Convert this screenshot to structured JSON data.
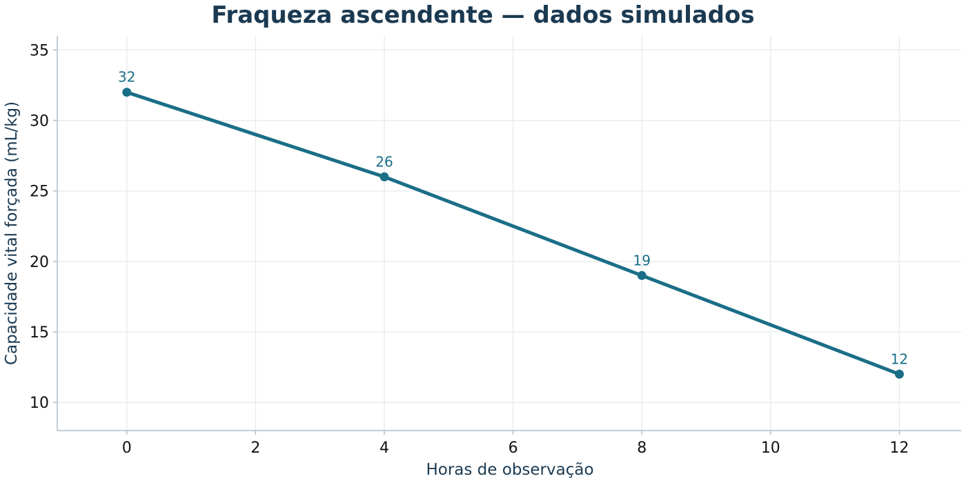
{
  "chart_data": {
    "type": "line",
    "title": "Fraqueza ascendente — dados simulados",
    "xlabel": "Horas de observação",
    "ylabel": "Capacidade vital forçada (mL/kg)",
    "x": [
      0,
      4,
      8,
      12
    ],
    "series": [
      {
        "values": [
          32,
          26,
          19,
          12
        ],
        "data_labels": [
          "32",
          "26",
          "19",
          "12"
        ],
        "color": "#1a6e87"
      }
    ],
    "xlim": [
      -1.08,
      12.96
    ],
    "ylim": [
      8,
      36
    ],
    "xticks": [
      0,
      2,
      4,
      6,
      8,
      10,
      12
    ],
    "xtick_labels": [
      "0",
      "2",
      "4",
      "6",
      "8",
      "10",
      "12"
    ],
    "yticks": [
      10,
      15,
      20,
      25,
      30,
      35
    ],
    "ytick_labels": [
      "10",
      "15",
      "20",
      "25",
      "30",
      "35"
    ],
    "grid": true,
    "legend": "none",
    "colors": {
      "line": "#1a6e87",
      "title": "#1b3a52",
      "axis_label": "#1b3a52",
      "grid": "#e8ecef",
      "spine": "#aebdca"
    }
  }
}
